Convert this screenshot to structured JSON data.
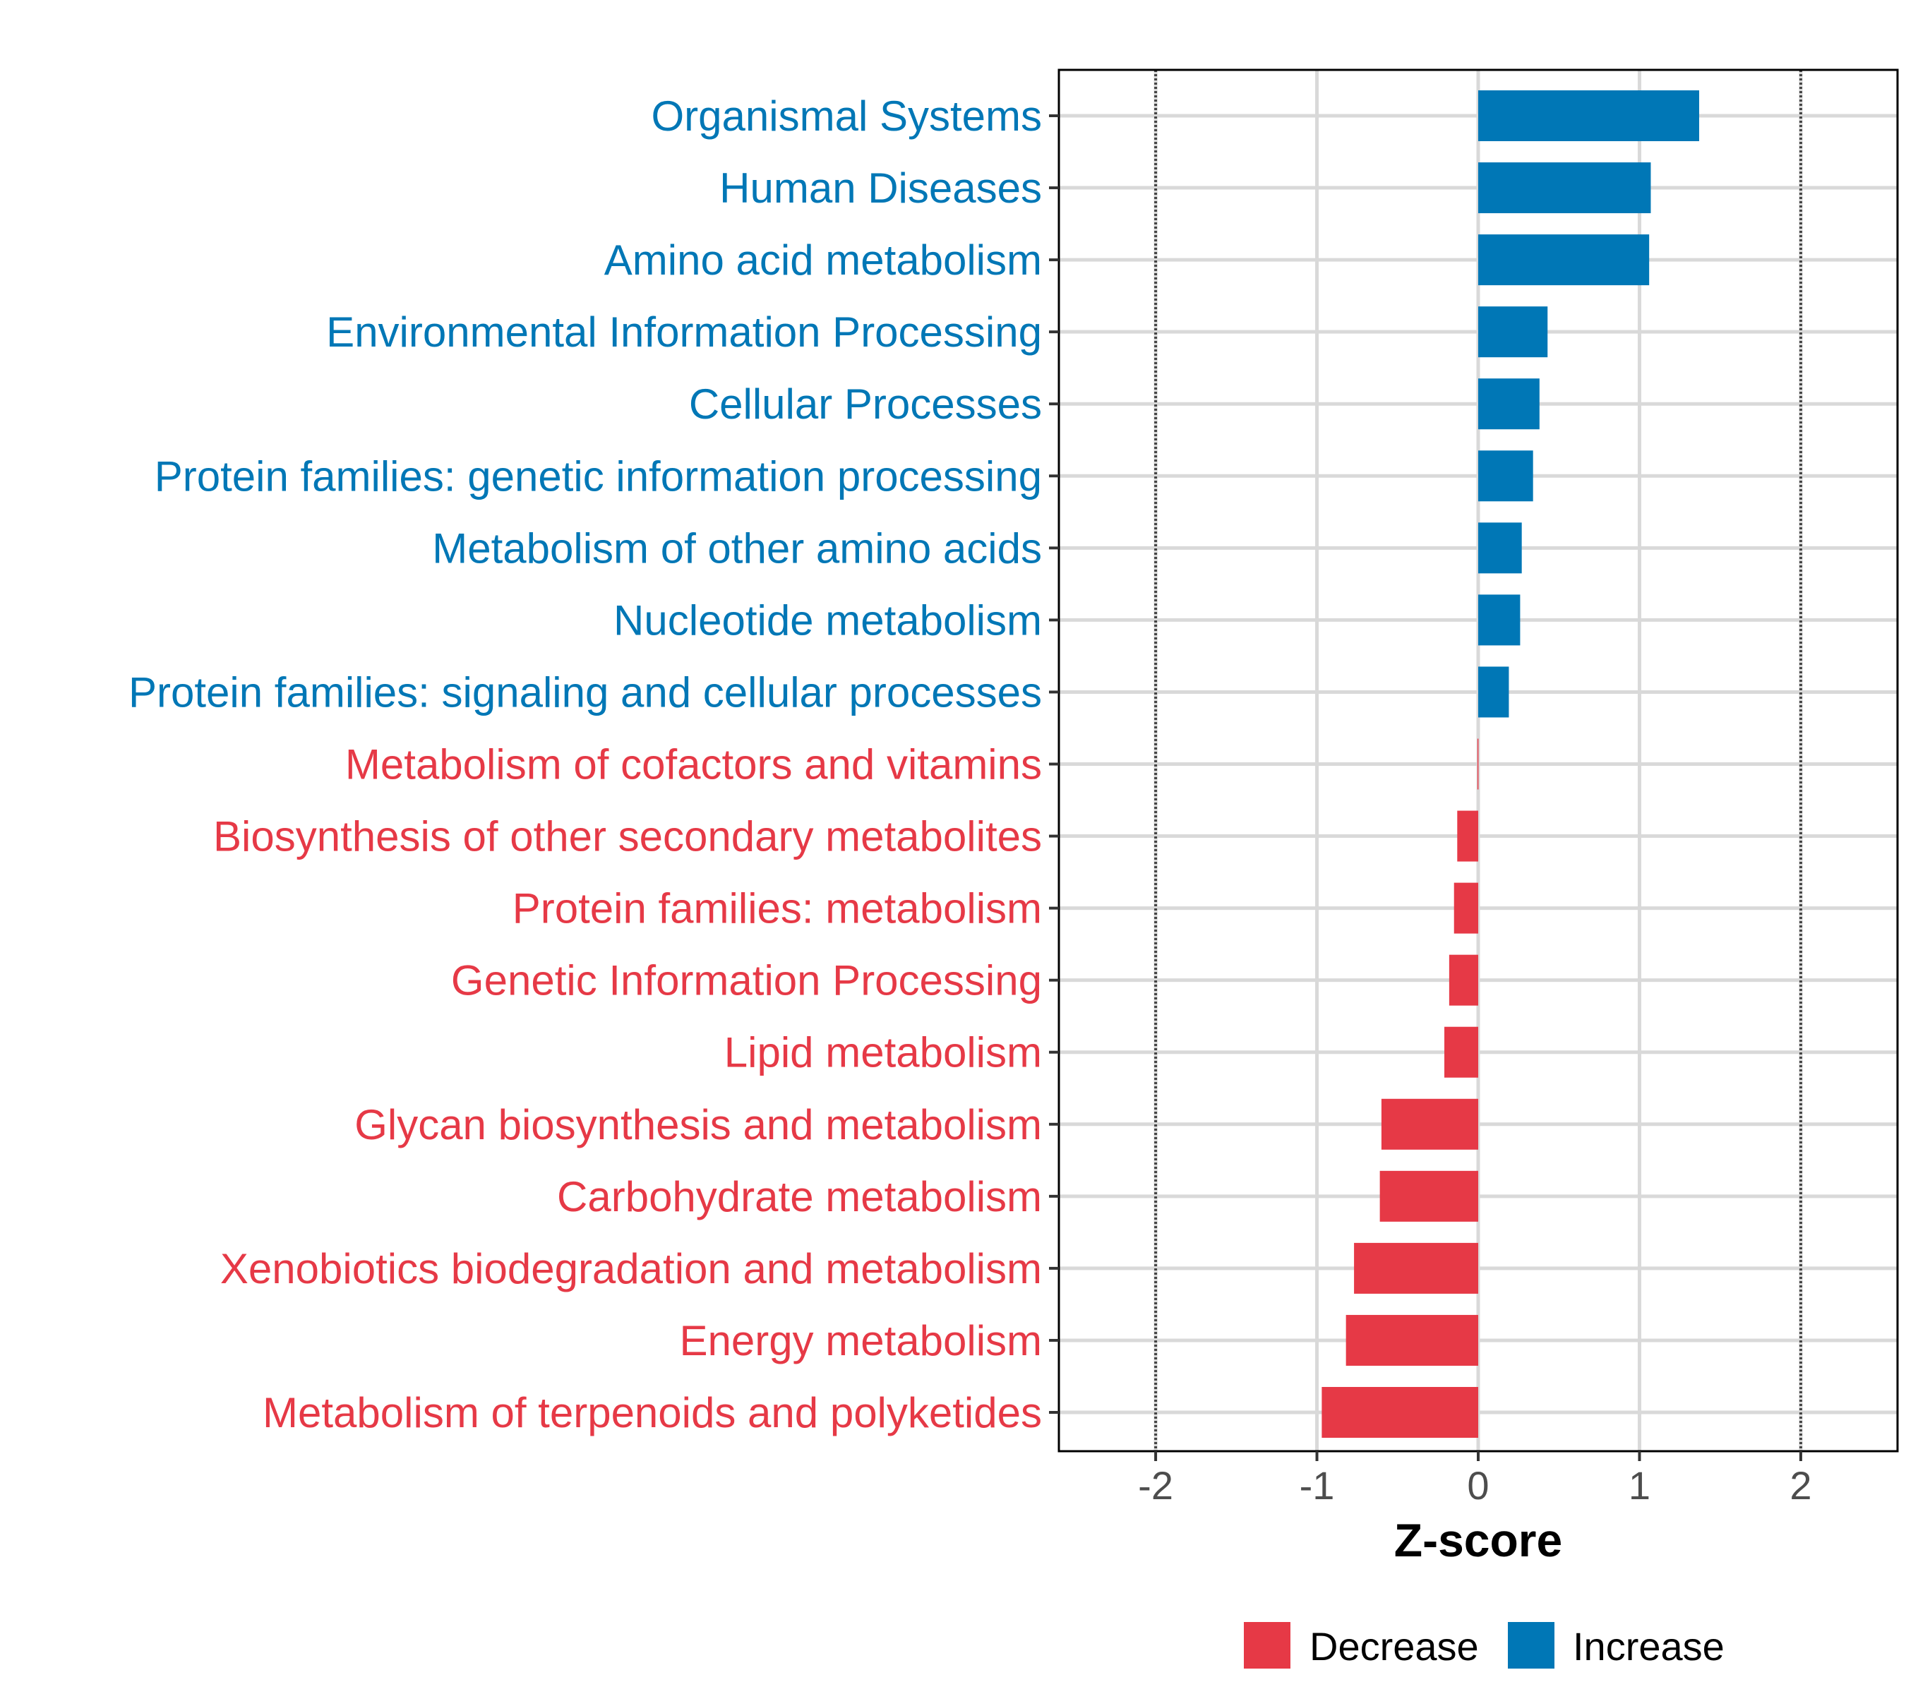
{
  "chart_data": {
    "type": "bar",
    "orientation": "horizontal",
    "title": "",
    "xlabel": "Z-score",
    "ylabel": "",
    "xlim": [
      -2.6,
      2.6
    ],
    "xticks": [
      -2,
      -1,
      0,
      1,
      2
    ],
    "xtick_labels": [
      "-2",
      "-1",
      "0",
      "1",
      "2"
    ],
    "reference_lines": [
      -2,
      2
    ],
    "grid": true,
    "legend_position": "bottom",
    "legend": [
      {
        "label": "Decrease",
        "color": "#E63946"
      },
      {
        "label": "Increase",
        "color": "#0077B6"
      }
    ],
    "categories": [
      "Organismal Systems",
      "Human Diseases",
      "Amino acid metabolism",
      "Environmental Information Processing",
      "Cellular Processes",
      "Protein families: genetic information processing",
      "Metabolism of other amino acids",
      "Nucleotide metabolism",
      "Protein families: signaling and cellular processes",
      "Metabolism of cofactors and vitamins",
      "Biosynthesis of other secondary metabolites",
      "Protein families: metabolism",
      "Genetic Information Processing",
      "Lipid metabolism",
      "Glycan biosynthesis and metabolism",
      "Carbohydrate metabolism",
      "Xenobiotics biodegradation and metabolism",
      "Energy metabolism",
      "Metabolism of terpenoids and polyketides"
    ],
    "values": [
      1.37,
      1.07,
      1.06,
      0.43,
      0.38,
      0.34,
      0.27,
      0.26,
      0.19,
      -0.005,
      -0.13,
      -0.15,
      -0.18,
      -0.21,
      -0.6,
      -0.61,
      -0.77,
      -0.82,
      -0.97
    ]
  }
}
